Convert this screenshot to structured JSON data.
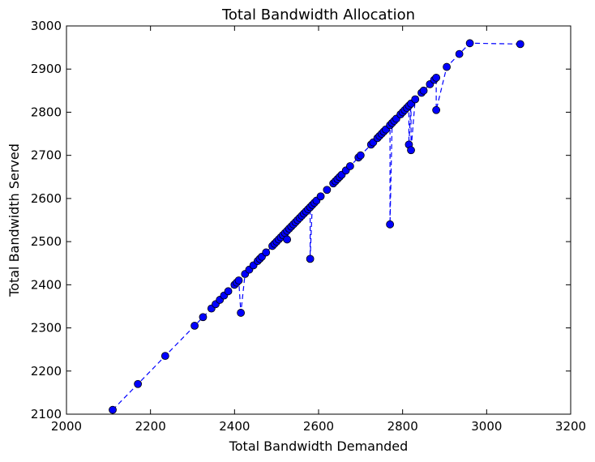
{
  "chart_data": {
    "type": "line",
    "title": "Total Bandwidth Allocation",
    "xlabel": "Total Bandwidth Demanded",
    "ylabel": "Total Bandwidth Served",
    "xlim": [
      2000,
      3200
    ],
    "ylim": [
      2100,
      3000
    ],
    "xticks": [
      "2000",
      "2200",
      "2400",
      "2600",
      "2800",
      "3000",
      "3200"
    ],
    "yticks": [
      "2100",
      "2200",
      "2300",
      "2400",
      "2500",
      "2600",
      "2700",
      "2800",
      "2900",
      "3000"
    ],
    "grid": false,
    "line_style": "dashed",
    "marker": "circle",
    "color": "#0000ff",
    "series": [
      {
        "x": [
          2110,
          2170,
          2235,
          2305,
          2325,
          2345,
          2355,
          2365,
          2375,
          2385,
          2400,
          2405,
          2410,
          2415,
          2425,
          2435,
          2445,
          2455,
          2460,
          2465,
          2475,
          2490,
          2495,
          2500,
          2505,
          2510,
          2515,
          2520,
          2525,
          2525,
          2530,
          2535,
          2540,
          2545,
          2550,
          2555,
          2560,
          2565,
          2570,
          2575,
          2580,
          2580,
          2585,
          2590,
          2595,
          2605,
          2620,
          2635,
          2640,
          2645,
          2650,
          2655,
          2665,
          2675,
          2695,
          2700,
          2725,
          2730,
          2740,
          2745,
          2750,
          2755,
          2760,
          2770,
          2770,
          2775,
          2780,
          2785,
          2795,
          2800,
          2805,
          2810,
          2815,
          2815,
          2820,
          2820,
          2830,
          2845,
          2850,
          2865,
          2875,
          2880,
          2880,
          2905,
          2935,
          2960,
          3080
        ],
        "y": [
          2110,
          2170,
          2235,
          2305,
          2325,
          2345,
          2355,
          2365,
          2375,
          2385,
          2400,
          2405,
          2410,
          2335,
          2425,
          2435,
          2445,
          2455,
          2460,
          2465,
          2475,
          2490,
          2495,
          2500,
          2505,
          2510,
          2515,
          2520,
          2525,
          2505,
          2530,
          2535,
          2540,
          2545,
          2550,
          2555,
          2560,
          2565,
          2570,
          2575,
          2580,
          2460,
          2585,
          2590,
          2595,
          2605,
          2620,
          2635,
          2640,
          2645,
          2650,
          2655,
          2665,
          2675,
          2695,
          2700,
          2725,
          2730,
          2740,
          2745,
          2750,
          2755,
          2760,
          2770,
          2540,
          2775,
          2780,
          2785,
          2795,
          2800,
          2805,
          2810,
          2815,
          2725,
          2820,
          2712,
          2830,
          2845,
          2850,
          2865,
          2875,
          2880,
          2805,
          2905,
          2935,
          2960,
          2958
        ]
      }
    ]
  }
}
